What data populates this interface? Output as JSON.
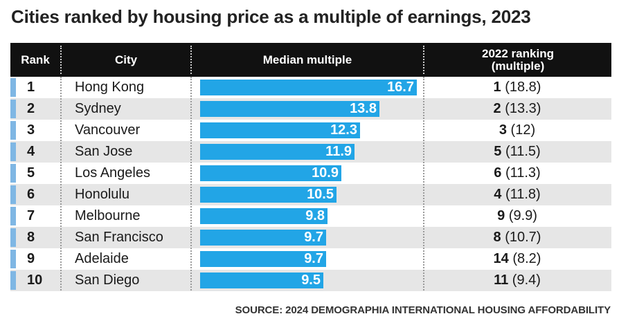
{
  "title": "Cities ranked by housing price as a multiple of earnings, 2023",
  "header": {
    "rank": "Rank",
    "city": "City",
    "median": "Median multiple",
    "prev_line1": "2022 ranking",
    "prev_line2": "(multiple)"
  },
  "source": "SOURCE: 2024 DEMOGRAPHIA INTERNATIONAL HOUSING AFFORDABILITY",
  "colors": {
    "bar": "#22a5e6",
    "marker": "#7fb7e4",
    "header_bg": "#111111",
    "alt_row": "#e6e6e6"
  },
  "chart_data": {
    "type": "bar",
    "title": "Cities ranked by housing price as a multiple of earnings, 2023",
    "xlabel": "Median multiple",
    "ylabel": "City",
    "xlim": [
      0,
      16.7
    ],
    "categories": [
      "Hong Kong",
      "Sydney",
      "Vancouver",
      "San Jose",
      "Los Angeles",
      "Honolulu",
      "Melbourne",
      "San Francisco",
      "Adelaide",
      "San Diego"
    ],
    "values": [
      16.7,
      13.8,
      12.3,
      11.9,
      10.9,
      10.5,
      9.8,
      9.7,
      9.7,
      9.5
    ],
    "rows": [
      {
        "rank": "1",
        "city": "Hong Kong",
        "value": 16.7,
        "value_label": "16.7",
        "prev_rank": "1",
        "prev_multiple": "(18.8)"
      },
      {
        "rank": "2",
        "city": "Sydney",
        "value": 13.8,
        "value_label": "13.8",
        "prev_rank": "2",
        "prev_multiple": "(13.3)"
      },
      {
        "rank": "3",
        "city": "Vancouver",
        "value": 12.3,
        "value_label": "12.3",
        "prev_rank": "3",
        "prev_multiple": "(12)"
      },
      {
        "rank": "4",
        "city": "San Jose",
        "value": 11.9,
        "value_label": "11.9",
        "prev_rank": "5",
        "prev_multiple": "(11.5)"
      },
      {
        "rank": "5",
        "city": "Los Angeles",
        "value": 10.9,
        "value_label": "10.9",
        "prev_rank": "6",
        "prev_multiple": "(11.3)"
      },
      {
        "rank": "6",
        "city": "Honolulu",
        "value": 10.5,
        "value_label": "10.5",
        "prev_rank": "4",
        "prev_multiple": "(11.8)"
      },
      {
        "rank": "7",
        "city": "Melbourne",
        "value": 9.8,
        "value_label": "9.8",
        "prev_rank": "9",
        "prev_multiple": "(9.9)"
      },
      {
        "rank": "8",
        "city": "San Francisco",
        "value": 9.7,
        "value_label": "9.7",
        "prev_rank": "8",
        "prev_multiple": "(10.7)"
      },
      {
        "rank": "9",
        "city": "Adelaide",
        "value": 9.7,
        "value_label": "9.7",
        "prev_rank": "14",
        "prev_multiple": "(8.2)"
      },
      {
        "rank": "10",
        "city": "San Diego",
        "value": 9.5,
        "value_label": "9.5",
        "prev_rank": "11",
        "prev_multiple": "(9.4)"
      }
    ]
  }
}
